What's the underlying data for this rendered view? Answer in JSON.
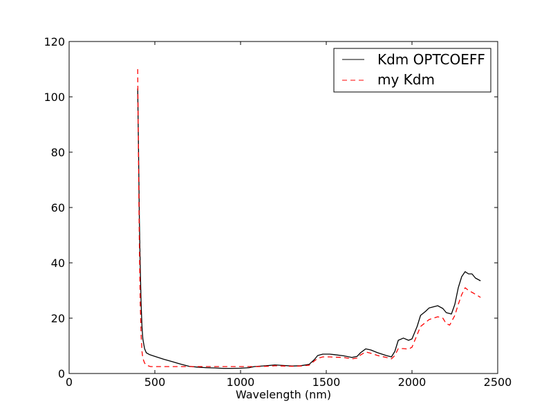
{
  "chart_data": {
    "type": "line",
    "xlabel": "Wavelength (nm)",
    "ylabel": "",
    "xlim": [
      0,
      2500
    ],
    "ylim": [
      0,
      120
    ],
    "x_ticks": [
      0,
      500,
      1000,
      1500,
      2000,
      2500
    ],
    "y_ticks": [
      0,
      20,
      40,
      60,
      80,
      100,
      120
    ],
    "grid": false,
    "legend_position": "top-right",
    "series": [
      {
        "name": "Kdm OPTCOEFF",
        "color": "#000000",
        "style": "solid",
        "points": [
          [
            400,
            103
          ],
          [
            405,
            80
          ],
          [
            410,
            55
          ],
          [
            415,
            38
          ],
          [
            420,
            25
          ],
          [
            425,
            17
          ],
          [
            430,
            12.5
          ],
          [
            440,
            9
          ],
          [
            450,
            7.5
          ],
          [
            470,
            6.8
          ],
          [
            500,
            6.2
          ],
          [
            550,
            5.2
          ],
          [
            600,
            4.3
          ],
          [
            650,
            3.4
          ],
          [
            700,
            2.6
          ],
          [
            750,
            2.3
          ],
          [
            800,
            2.1
          ],
          [
            850,
            2.0
          ],
          [
            900,
            1.85
          ],
          [
            950,
            1.85
          ],
          [
            1000,
            1.9
          ],
          [
            1050,
            2.1
          ],
          [
            1080,
            2.5
          ],
          [
            1100,
            2.6
          ],
          [
            1150,
            2.8
          ],
          [
            1200,
            3.1
          ],
          [
            1250,
            2.9
          ],
          [
            1300,
            2.7
          ],
          [
            1350,
            2.8
          ],
          [
            1400,
            3.3
          ],
          [
            1430,
            5.0
          ],
          [
            1450,
            6.5
          ],
          [
            1480,
            7.0
          ],
          [
            1520,
            7.0
          ],
          [
            1550,
            6.8
          ],
          [
            1600,
            6.4
          ],
          [
            1650,
            5.8
          ],
          [
            1680,
            6.2
          ],
          [
            1700,
            7.5
          ],
          [
            1730,
            8.9
          ],
          [
            1760,
            8.5
          ],
          [
            1800,
            7.5
          ],
          [
            1850,
            6.5
          ],
          [
            1880,
            6.0
          ],
          [
            1900,
            8.0
          ],
          [
            1920,
            12.0
          ],
          [
            1950,
            12.8
          ],
          [
            1980,
            12.0
          ],
          [
            2000,
            12.5
          ],
          [
            2030,
            17.0
          ],
          [
            2050,
            21.0
          ],
          [
            2080,
            22.5
          ],
          [
            2100,
            23.7
          ],
          [
            2150,
            24.5
          ],
          [
            2180,
            23.5
          ],
          [
            2200,
            22.0
          ],
          [
            2230,
            21.5
          ],
          [
            2250,
            25.0
          ],
          [
            2270,
            31.0
          ],
          [
            2290,
            35.0
          ],
          [
            2310,
            36.8
          ],
          [
            2330,
            36.0
          ],
          [
            2350,
            36.0
          ],
          [
            2370,
            34.5
          ],
          [
            2400,
            33.5
          ]
        ]
      },
      {
        "name": "my Kdm",
        "color": "#ff0000",
        "style": "dashed",
        "points": [
          [
            400,
            110
          ],
          [
            405,
            75
          ],
          [
            410,
            45
          ],
          [
            415,
            25
          ],
          [
            420,
            14
          ],
          [
            425,
            8
          ],
          [
            430,
            5.5
          ],
          [
            440,
            3.8
          ],
          [
            450,
            3.0
          ],
          [
            475,
            2.5
          ],
          [
            500,
            2.5
          ],
          [
            550,
            2.5
          ],
          [
            600,
            2.5
          ],
          [
            700,
            2.5
          ],
          [
            800,
            2.5
          ],
          [
            900,
            2.5
          ],
          [
            1000,
            2.5
          ],
          [
            1050,
            2.5
          ],
          [
            1100,
            2.5
          ],
          [
            1150,
            2.6
          ],
          [
            1200,
            2.8
          ],
          [
            1250,
            2.7
          ],
          [
            1300,
            2.6
          ],
          [
            1350,
            2.7
          ],
          [
            1400,
            3.0
          ],
          [
            1430,
            4.5
          ],
          [
            1450,
            5.5
          ],
          [
            1480,
            6.0
          ],
          [
            1520,
            6.0
          ],
          [
            1550,
            5.9
          ],
          [
            1600,
            5.8
          ],
          [
            1650,
            5.3
          ],
          [
            1680,
            5.6
          ],
          [
            1700,
            6.7
          ],
          [
            1730,
            7.8
          ],
          [
            1760,
            7.3
          ],
          [
            1800,
            6.5
          ],
          [
            1850,
            5.8
          ],
          [
            1880,
            5.3
          ],
          [
            1900,
            6.5
          ],
          [
            1920,
            9.0
          ],
          [
            1950,
            9.0
          ],
          [
            1980,
            8.8
          ],
          [
            2000,
            9.5
          ],
          [
            2030,
            14.0
          ],
          [
            2050,
            17.0
          ],
          [
            2080,
            18.5
          ],
          [
            2100,
            19.5
          ],
          [
            2150,
            20.5
          ],
          [
            2180,
            20.0
          ],
          [
            2200,
            18.0
          ],
          [
            2220,
            17.5
          ],
          [
            2250,
            21.0
          ],
          [
            2270,
            25.0
          ],
          [
            2290,
            28.5
          ],
          [
            2310,
            31.0
          ],
          [
            2330,
            30.0
          ],
          [
            2360,
            29.0
          ],
          [
            2400,
            27.5
          ]
        ]
      }
    ]
  }
}
